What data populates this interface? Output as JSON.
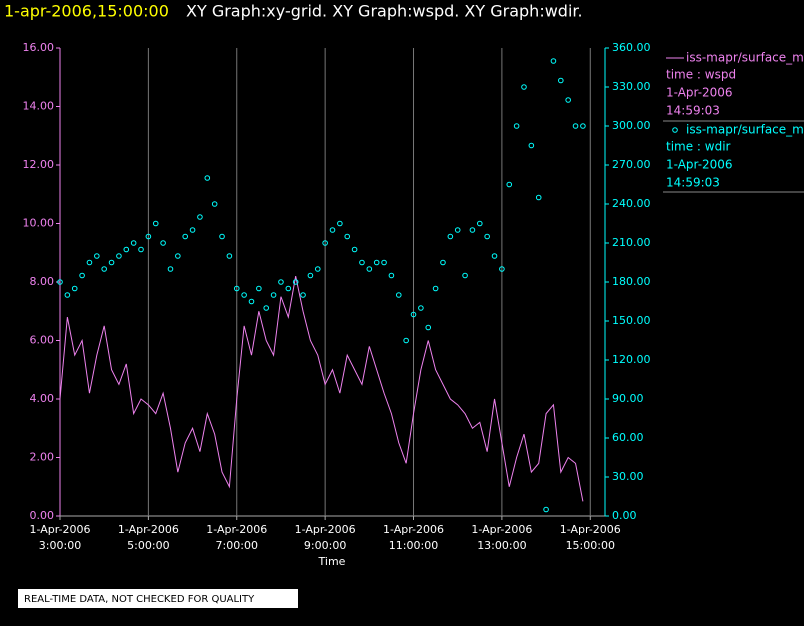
{
  "chart_data": {
    "type": "line-scatter",
    "header": "1-apr-2006,15:00:00",
    "title": "XY Graph:xy-grid.  XY Graph:wspd.  XY Graph:wdir.",
    "xlabel": "Time",
    "footer": "REAL-TIME DATA, NOT CHECKED FOR QUALITY",
    "grid": true,
    "xlim": [
      "2006-04-01 03:00",
      "2006-04-01 15:20"
    ],
    "xticks": [
      {
        "value": "2006-04-01 03:00",
        "label": [
          "1-Apr-2006",
          "3:00:00"
        ]
      },
      {
        "value": "2006-04-01 05:00",
        "label": [
          "1-Apr-2006",
          "5:00:00"
        ]
      },
      {
        "value": "2006-04-01 07:00",
        "label": [
          "1-Apr-2006",
          "7:00:00"
        ]
      },
      {
        "value": "2006-04-01 09:00",
        "label": [
          "1-Apr-2006",
          "9:00:00"
        ]
      },
      {
        "value": "2006-04-01 11:00",
        "label": [
          "1-Apr-2006",
          "11:00:00"
        ]
      },
      {
        "value": "2006-04-01 13:00",
        "label": [
          "1-Apr-2006",
          "13:00:00"
        ]
      },
      {
        "value": "2006-04-01 15:00",
        "label": [
          "1-Apr-2006",
          "15:00:00"
        ]
      }
    ],
    "ylim": [
      0,
      16
    ],
    "yticks": [
      {
        "value": 0,
        "label": "0.00"
      },
      {
        "value": 2,
        "label": "2.00"
      },
      {
        "value": 4,
        "label": "4.00"
      },
      {
        "value": 6,
        "label": "6.00"
      },
      {
        "value": 8,
        "label": "8.00"
      },
      {
        "value": 10,
        "label": "10.00"
      },
      {
        "value": 12,
        "label": "12.00"
      },
      {
        "value": 14,
        "label": "14.00"
      },
      {
        "value": 16,
        "label": "16.00"
      }
    ],
    "y2lim": [
      0,
      360
    ],
    "y2ticks": [
      {
        "value": 0,
        "label": "0.00"
      },
      {
        "value": 30,
        "label": "30.00"
      },
      {
        "value": 60,
        "label": "60.00"
      },
      {
        "value": 90,
        "label": "90.00"
      },
      {
        "value": 120,
        "label": "120.00"
      },
      {
        "value": 150,
        "label": "150.00"
      },
      {
        "value": 180,
        "label": "180.00"
      },
      {
        "value": 210,
        "label": "210.00"
      },
      {
        "value": 240,
        "label": "240.00"
      },
      {
        "value": 270,
        "label": "270.00"
      },
      {
        "value": 300,
        "label": "300.00"
      },
      {
        "value": 330,
        "label": "330.00"
      },
      {
        "value": 360,
        "label": "360.00"
      }
    ],
    "x": [
      "2006-04-01 03:00",
      "2006-04-01 03:10",
      "2006-04-01 03:20",
      "2006-04-01 03:30",
      "2006-04-01 03:40",
      "2006-04-01 03:50",
      "2006-04-01 04:00",
      "2006-04-01 04:10",
      "2006-04-01 04:20",
      "2006-04-01 04:30",
      "2006-04-01 04:40",
      "2006-04-01 04:50",
      "2006-04-01 05:00",
      "2006-04-01 05:10",
      "2006-04-01 05:20",
      "2006-04-01 05:30",
      "2006-04-01 05:40",
      "2006-04-01 05:50",
      "2006-04-01 06:00",
      "2006-04-01 06:10",
      "2006-04-01 06:20",
      "2006-04-01 06:30",
      "2006-04-01 06:40",
      "2006-04-01 06:50",
      "2006-04-01 07:00",
      "2006-04-01 07:10",
      "2006-04-01 07:20",
      "2006-04-01 07:30",
      "2006-04-01 07:40",
      "2006-04-01 07:50",
      "2006-04-01 08:00",
      "2006-04-01 08:10",
      "2006-04-01 08:20",
      "2006-04-01 08:30",
      "2006-04-01 08:40",
      "2006-04-01 08:50",
      "2006-04-01 09:00",
      "2006-04-01 09:10",
      "2006-04-01 09:20",
      "2006-04-01 09:30",
      "2006-04-01 09:40",
      "2006-04-01 09:50",
      "2006-04-01 10:00",
      "2006-04-01 10:10",
      "2006-04-01 10:20",
      "2006-04-01 10:30",
      "2006-04-01 10:40",
      "2006-04-01 10:50",
      "2006-04-01 11:00",
      "2006-04-01 11:10",
      "2006-04-01 11:20",
      "2006-04-01 11:30",
      "2006-04-01 11:40",
      "2006-04-01 11:50",
      "2006-04-01 12:00",
      "2006-04-01 12:10",
      "2006-04-01 12:20",
      "2006-04-01 12:30",
      "2006-04-01 12:40",
      "2006-04-01 12:50",
      "2006-04-01 13:00",
      "2006-04-01 13:10",
      "2006-04-01 13:20",
      "2006-04-01 13:30",
      "2006-04-01 13:40",
      "2006-04-01 13:50",
      "2006-04-01 14:00",
      "2006-04-01 14:10",
      "2006-04-01 14:20",
      "2006-04-01 14:30",
      "2006-04-01 14:40",
      "2006-04-01 14:50"
    ],
    "series": [
      {
        "name": "iss-mapr/surface_m",
        "legend_lines": [
          "time : wspd",
          "1-Apr-2006",
          "14:59:03"
        ],
        "color": "#ee82ee",
        "style": "line",
        "values": [
          4.0,
          6.8,
          5.5,
          6.0,
          4.2,
          5.5,
          6.5,
          5.0,
          4.5,
          5.2,
          3.5,
          4.0,
          3.8,
          3.5,
          4.2,
          3.0,
          1.5,
          2.5,
          3.0,
          2.2,
          3.5,
          2.8,
          1.5,
          1.0,
          4.0,
          6.5,
          5.5,
          7.0,
          6.0,
          5.5,
          7.5,
          6.8,
          8.2,
          7.0,
          6.0,
          5.5,
          4.5,
          5.0,
          4.2,
          5.5,
          5.0,
          4.5,
          5.8,
          5.0,
          4.2,
          3.5,
          2.5,
          1.8,
          3.5,
          5.0,
          6.0,
          5.0,
          4.5,
          4.0,
          3.8,
          3.5,
          3.0,
          3.2,
          2.2,
          4.0,
          2.5,
          1.0,
          2.0,
          2.8,
          1.5,
          1.8,
          3.5,
          3.8,
          1.5,
          2.0,
          1.8,
          0.5
        ]
      },
      {
        "name": "iss-mapr/surface_m",
        "legend_lines": [
          "time : wdir",
          "1-Apr-2006",
          "14:59:03"
        ],
        "color": "#00ffff",
        "style": "scatter",
        "axis": "y2",
        "values": [
          180,
          170,
          175,
          185,
          195,
          200,
          190,
          195,
          200,
          205,
          210,
          205,
          215,
          225,
          210,
          190,
          200,
          215,
          220,
          230,
          260,
          240,
          215,
          200,
          175,
          170,
          165,
          175,
          160,
          170,
          180,
          175,
          180,
          170,
          185,
          190,
          210,
          220,
          225,
          215,
          205,
          195,
          190,
          195,
          195,
          185,
          170,
          135,
          155,
          160,
          145,
          175,
          195,
          215,
          220,
          185,
          220,
          225,
          215,
          200,
          190,
          255,
          300,
          330,
          285,
          245,
          5,
          350,
          335,
          320,
          300,
          300
        ]
      }
    ]
  }
}
